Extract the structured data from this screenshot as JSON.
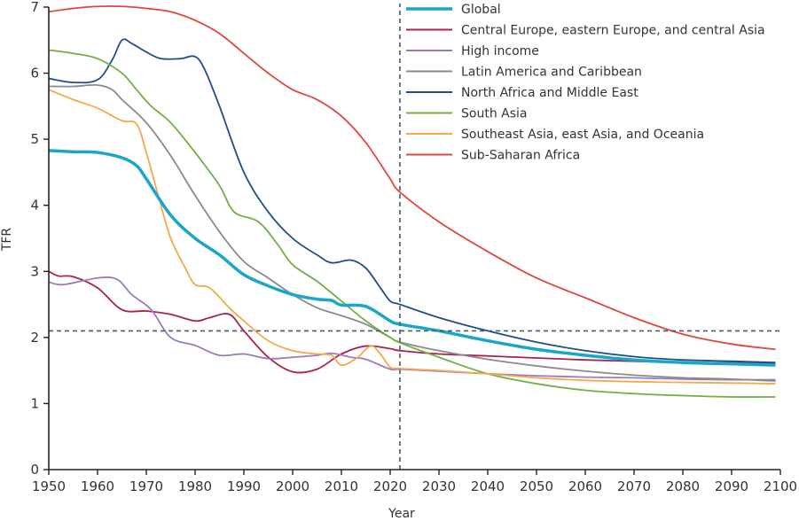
{
  "chart_data": {
    "type": "line",
    "title": "",
    "xlabel": "Year",
    "ylabel": "TFR",
    "xlim": [
      1950,
      2100
    ],
    "ylim": [
      0,
      7
    ],
    "xticks": [
      1950,
      1960,
      1970,
      1980,
      1990,
      2000,
      2010,
      2020,
      2030,
      2040,
      2050,
      2060,
      2070,
      2080,
      2090,
      2100
    ],
    "yticks": [
      0,
      1,
      2,
      3,
      4,
      5,
      6,
      7
    ],
    "grid": false,
    "legend_position": "top-right",
    "reference_lines": {
      "vertical_x": 2022,
      "horizontal_y": 2.1,
      "style": "dashed",
      "color": "#4a5a66"
    },
    "series": [
      {
        "name": "Global",
        "color": "#1aa6c9",
        "width": 3.5,
        "x": [
          1950,
          1955,
          1960,
          1965,
          1968,
          1970,
          1975,
          1980,
          1985,
          1990,
          1995,
          2000,
          2005,
          2008,
          2010,
          2015,
          2020,
          2022,
          2030,
          2040,
          2050,
          2060,
          2070,
          2080,
          2090,
          2099
        ],
        "y": [
          4.83,
          4.81,
          4.8,
          4.72,
          4.6,
          4.4,
          3.85,
          3.5,
          3.25,
          2.95,
          2.78,
          2.65,
          2.58,
          2.56,
          2.49,
          2.47,
          2.25,
          2.2,
          2.1,
          1.95,
          1.82,
          1.73,
          1.66,
          1.62,
          1.6,
          1.58
        ]
      },
      {
        "name": "Central Europe, eastern Europe, and central Asia",
        "color": "#a8234c",
        "width": 1.8,
        "x": [
          1950,
          1952,
          1955,
          1960,
          1965,
          1970,
          1975,
          1980,
          1983,
          1987,
          1990,
          1995,
          2000,
          2005,
          2010,
          2015,
          2020,
          2022,
          2030,
          2040,
          2050,
          2060,
          2070,
          2080,
          2090,
          2099
        ],
        "y": [
          3.0,
          2.93,
          2.92,
          2.75,
          2.42,
          2.4,
          2.35,
          2.25,
          2.3,
          2.35,
          2.1,
          1.7,
          1.48,
          1.52,
          1.75,
          1.87,
          1.83,
          1.8,
          1.75,
          1.72,
          1.69,
          1.66,
          1.64,
          1.62,
          1.62,
          1.61
        ]
      },
      {
        "name": "High income",
        "color": "#9b7bbd",
        "width": 1.8,
        "x": [
          1950,
          1953,
          1960,
          1964,
          1967,
          1971,
          1975,
          1980,
          1985,
          1990,
          1995,
          2000,
          2005,
          2008,
          2012,
          2015,
          2020,
          2022,
          2030,
          2040,
          2050,
          2060,
          2070,
          2080,
          2090,
          2099
        ],
        "y": [
          2.84,
          2.8,
          2.9,
          2.88,
          2.65,
          2.42,
          2.0,
          1.88,
          1.73,
          1.75,
          1.68,
          1.7,
          1.73,
          1.76,
          1.7,
          1.67,
          1.52,
          1.52,
          1.49,
          1.45,
          1.42,
          1.4,
          1.39,
          1.37,
          1.36,
          1.36
        ]
      },
      {
        "name": "Latin America and Caribbean",
        "color": "#8a8a8a",
        "width": 1.8,
        "x": [
          1950,
          1955,
          1960,
          1963,
          1965,
          1970,
          1975,
          1980,
          1985,
          1990,
          1995,
          2000,
          2005,
          2010,
          2015,
          2020,
          2022,
          2030,
          2040,
          2050,
          2060,
          2070,
          2080,
          2090,
          2099
        ],
        "y": [
          5.8,
          5.8,
          5.82,
          5.75,
          5.6,
          5.25,
          4.75,
          4.15,
          3.6,
          3.15,
          2.9,
          2.65,
          2.45,
          2.33,
          2.2,
          2.0,
          1.93,
          1.8,
          1.67,
          1.57,
          1.49,
          1.43,
          1.39,
          1.37,
          1.34
        ]
      },
      {
        "name": "North Africa and Middle East",
        "color": "#1f4e8c",
        "width": 1.8,
        "x": [
          1950,
          1955,
          1960,
          1963,
          1965,
          1967,
          1970,
          1973,
          1977,
          1980,
          1982,
          1985,
          1990,
          1995,
          2000,
          2005,
          2008,
          2012,
          2015,
          2018,
          2020,
          2022,
          2030,
          2040,
          2050,
          2060,
          2070,
          2080,
          2090,
          2099
        ],
        "y": [
          5.92,
          5.86,
          5.9,
          6.2,
          6.5,
          6.45,
          6.32,
          6.22,
          6.22,
          6.25,
          6.05,
          5.5,
          4.5,
          3.9,
          3.5,
          3.25,
          3.13,
          3.17,
          3.05,
          2.75,
          2.55,
          2.5,
          2.3,
          2.1,
          1.93,
          1.8,
          1.71,
          1.66,
          1.64,
          1.62
        ]
      },
      {
        "name": "South Asia",
        "color": "#72b043",
        "width": 1.8,
        "x": [
          1950,
          1955,
          1960,
          1965,
          1968,
          1971,
          1975,
          1980,
          1985,
          1988,
          1993,
          1997,
          2000,
          2005,
          2010,
          2015,
          2020,
          2022,
          2030,
          2040,
          2050,
          2060,
          2070,
          2080,
          2090,
          2099
        ],
        "y": [
          6.35,
          6.3,
          6.22,
          6.0,
          5.75,
          5.5,
          5.25,
          4.8,
          4.3,
          3.9,
          3.75,
          3.4,
          3.1,
          2.85,
          2.55,
          2.25,
          2.0,
          1.92,
          1.7,
          1.45,
          1.3,
          1.2,
          1.15,
          1.12,
          1.1,
          1.1
        ]
      },
      {
        "name": "Southeast Asia, east Asia, and Oceania",
        "color": "#f5a94a",
        "width": 1.8,
        "x": [
          1950,
          1955,
          1960,
          1965,
          1968,
          1970,
          1973,
          1975,
          1978,
          1980,
          1983,
          1987,
          1990,
          1995,
          2000,
          2005,
          2008,
          2010,
          2013,
          2016,
          2018,
          2020,
          2022,
          2030,
          2040,
          2050,
          2060,
          2070,
          2080,
          2090,
          2099
        ],
        "y": [
          5.75,
          5.6,
          5.47,
          5.28,
          5.23,
          4.8,
          4.0,
          3.5,
          3.05,
          2.8,
          2.75,
          2.45,
          2.25,
          1.95,
          1.8,
          1.75,
          1.73,
          1.58,
          1.68,
          1.87,
          1.75,
          1.55,
          1.53,
          1.5,
          1.45,
          1.39,
          1.35,
          1.33,
          1.32,
          1.31,
          1.3
        ]
      },
      {
        "name": "Sub-Saharan Africa",
        "color": "#e2453c",
        "width": 1.8,
        "x": [
          1950,
          1955,
          1960,
          1965,
          1970,
          1975,
          1980,
          1985,
          1990,
          1995,
          2000,
          2005,
          2010,
          2015,
          2020,
          2022,
          2030,
          2040,
          2050,
          2060,
          2070,
          2080,
          2090,
          2099
        ],
        "y": [
          6.93,
          6.98,
          7.01,
          7.01,
          6.98,
          6.93,
          6.8,
          6.6,
          6.3,
          6.0,
          5.75,
          5.6,
          5.35,
          4.95,
          4.4,
          4.2,
          3.75,
          3.3,
          2.9,
          2.6,
          2.3,
          2.05,
          1.9,
          1.82
        ]
      }
    ]
  }
}
